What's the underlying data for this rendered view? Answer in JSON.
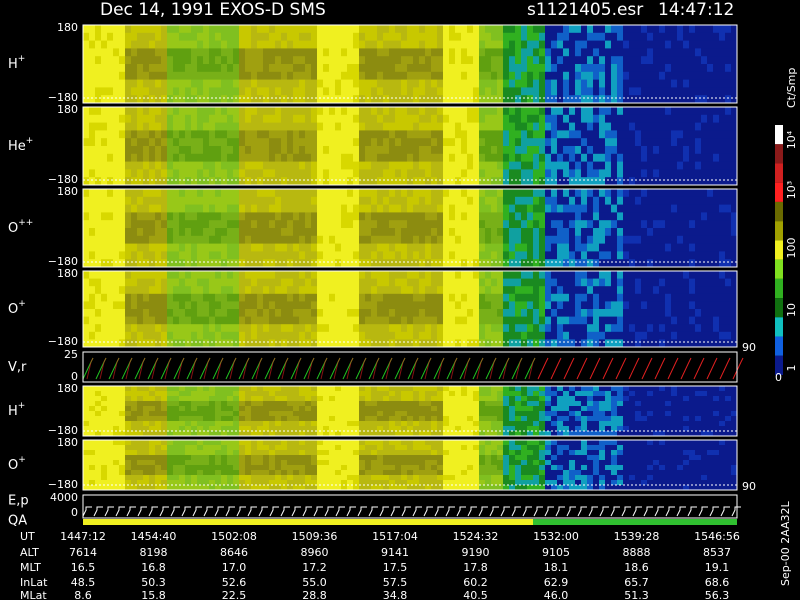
{
  "header": {
    "title": "Dec 14, 1991   EXOS-D SMS",
    "file": "s1121405.esr",
    "time": "14:47:12"
  },
  "panels": [
    {
      "label": "H",
      "sup": "+",
      "top": "180",
      "bottom": "−180"
    },
    {
      "label": "He",
      "sup": "+",
      "top": "180",
      "bottom": "−180"
    },
    {
      "label": "O",
      "sup": "++",
      "top": "180",
      "bottom": "−180"
    },
    {
      "label": "O",
      "sup": "+",
      "top": "180",
      "bottom": "−180"
    },
    {
      "label": "V,r",
      "top": "25",
      "bottom": "0"
    },
    {
      "label": "H",
      "sup": "+",
      "top": "180",
      "bottom": "−180"
    },
    {
      "label": "O",
      "sup": "+",
      "top": "180",
      "bottom": "−180"
    },
    {
      "label": "E,p",
      "top": "4000",
      "bottom": "0"
    }
  ],
  "qa": "QA",
  "right_labels": [
    "90",
    "90"
  ],
  "colorbar": {
    "unit": "Ct/Smp",
    "ticks": [
      "10⁴",
      "10³",
      "100",
      "10",
      "1"
    ],
    "zero": "0"
  },
  "ephemeris": {
    "rows": [
      {
        "name": "UT",
        "values": [
          "1447:12",
          "1454:40",
          "1502:08",
          "1509:36",
          "1517:04",
          "1524:32",
          "1532:00",
          "1539:28",
          "1546:56"
        ]
      },
      {
        "name": "ALT",
        "values": [
          "7614",
          "8198",
          "8646",
          "8960",
          "9141",
          "9190",
          "9105",
          "8888",
          "8537"
        ]
      },
      {
        "name": "MLT",
        "values": [
          "16.5",
          "16.8",
          "17.0",
          "17.2",
          "17.5",
          "17.8",
          "18.1",
          "18.6",
          "19.1"
        ]
      },
      {
        "name": "InLat",
        "values": [
          "48.5",
          "50.3",
          "52.6",
          "55.0",
          "57.5",
          "60.2",
          "62.9",
          "65.7",
          "68.6"
        ]
      },
      {
        "name": "MLat",
        "values": [
          "8.6",
          "15.8",
          "22.5",
          "28.8",
          "34.8",
          "40.5",
          "46.0",
          "51.3",
          "56.3"
        ]
      }
    ]
  },
  "footer": "Sep-00  2AA32L"
}
